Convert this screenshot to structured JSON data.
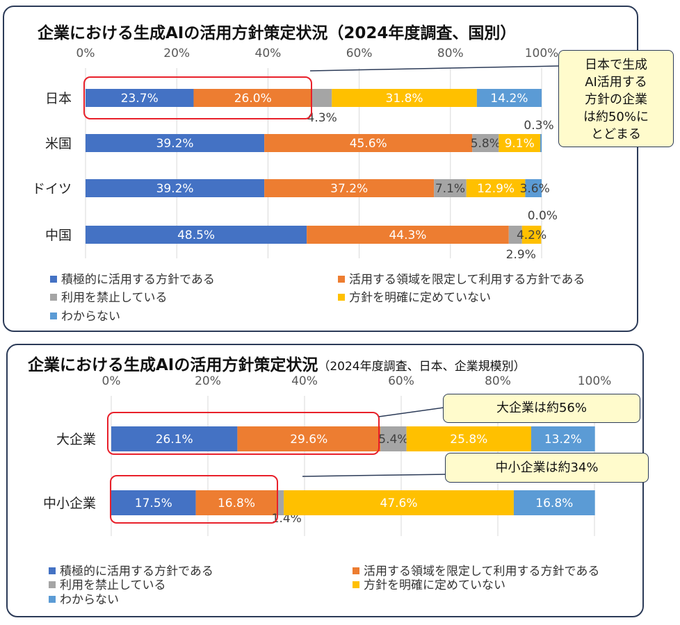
{
  "colors": {
    "positive": "#4472c4",
    "limited": "#ed7d31",
    "prohibited": "#a5a5a5",
    "undecided": "#ffc000",
    "unknown": "#5b9bd5",
    "highlight": "#e8202a",
    "frame": "#2b3a57",
    "callout_bg": "#fffbcc"
  },
  "panel1": {
    "title": "企業における生成AIの活用方針策定状況（2024年度調査、国別）",
    "callout_lines": [
      "日本で生成",
      "AI活用する",
      "方針の企業",
      "は約50%に",
      "とどまる"
    ],
    "legend": [
      "積極的に活用する方針である",
      "活用する領域を限定して利用する方針である",
      "利用を禁止している",
      "方針を明確に定めていない",
      "わからない"
    ]
  },
  "panel2": {
    "title": "企業における生成AIの活用方針策定状況",
    "subtitle": "（2024年度調査、日本、企業規模別）",
    "callouts": [
      "大企業は約56%",
      "中小企業は約34%"
    ],
    "legend": [
      "積極的に活用する方針である",
      "活用する領域を限定して利用する方針である",
      "利用を禁止している",
      "方針を明確に定めていない",
      "わからない"
    ]
  },
  "chart_data": [
    {
      "type": "bar",
      "orientation": "horizontal",
      "stacked": true,
      "title": "企業における生成AIの活用方針策定状況（2024年度調査、国別）",
      "xlim": [
        0,
        100
      ],
      "x_ticks": [
        "0%",
        "20%",
        "40%",
        "60%",
        "80%",
        "100%"
      ],
      "categories": [
        "日本",
        "米国",
        "ドイツ",
        "中国"
      ],
      "series": [
        {
          "name": "積極的に活用する方針である",
          "values": [
            23.7,
            39.2,
            39.2,
            48.5
          ]
        },
        {
          "name": "活用する領域を限定して利用する方針である",
          "values": [
            26.0,
            45.6,
            37.2,
            44.3
          ]
        },
        {
          "name": "利用を禁止している",
          "values": [
            4.3,
            5.8,
            7.1,
            2.9
          ]
        },
        {
          "name": "方針を明確に定めていない",
          "values": [
            31.8,
            9.1,
            12.9,
            4.2
          ]
        },
        {
          "name": "わからない",
          "values": [
            14.2,
            0.3,
            3.6,
            0.0
          ]
        }
      ],
      "grid": true,
      "legend_position": "bottom"
    },
    {
      "type": "bar",
      "orientation": "horizontal",
      "stacked": true,
      "title": "企業における生成AIの活用方針策定状況",
      "subtitle": "（2024年度調査、日本、企業規模別）",
      "xlim": [
        0,
        100
      ],
      "x_ticks": [
        "0%",
        "20%",
        "40%",
        "60%",
        "80%",
        "100%"
      ],
      "categories": [
        "大企業",
        "中小企業"
      ],
      "series": [
        {
          "name": "積極的に活用する方針である",
          "values": [
            26.1,
            17.5
          ]
        },
        {
          "name": "活用する領域を限定して利用する方針である",
          "values": [
            29.6,
            16.8
          ]
        },
        {
          "name": "利用を禁止している",
          "values": [
            5.4,
            1.4
          ]
        },
        {
          "name": "方針を明確に定めていない",
          "values": [
            25.8,
            47.6
          ]
        },
        {
          "name": "わからない",
          "values": [
            13.2,
            16.8
          ]
        }
      ],
      "grid": true,
      "legend_position": "bottom"
    }
  ]
}
